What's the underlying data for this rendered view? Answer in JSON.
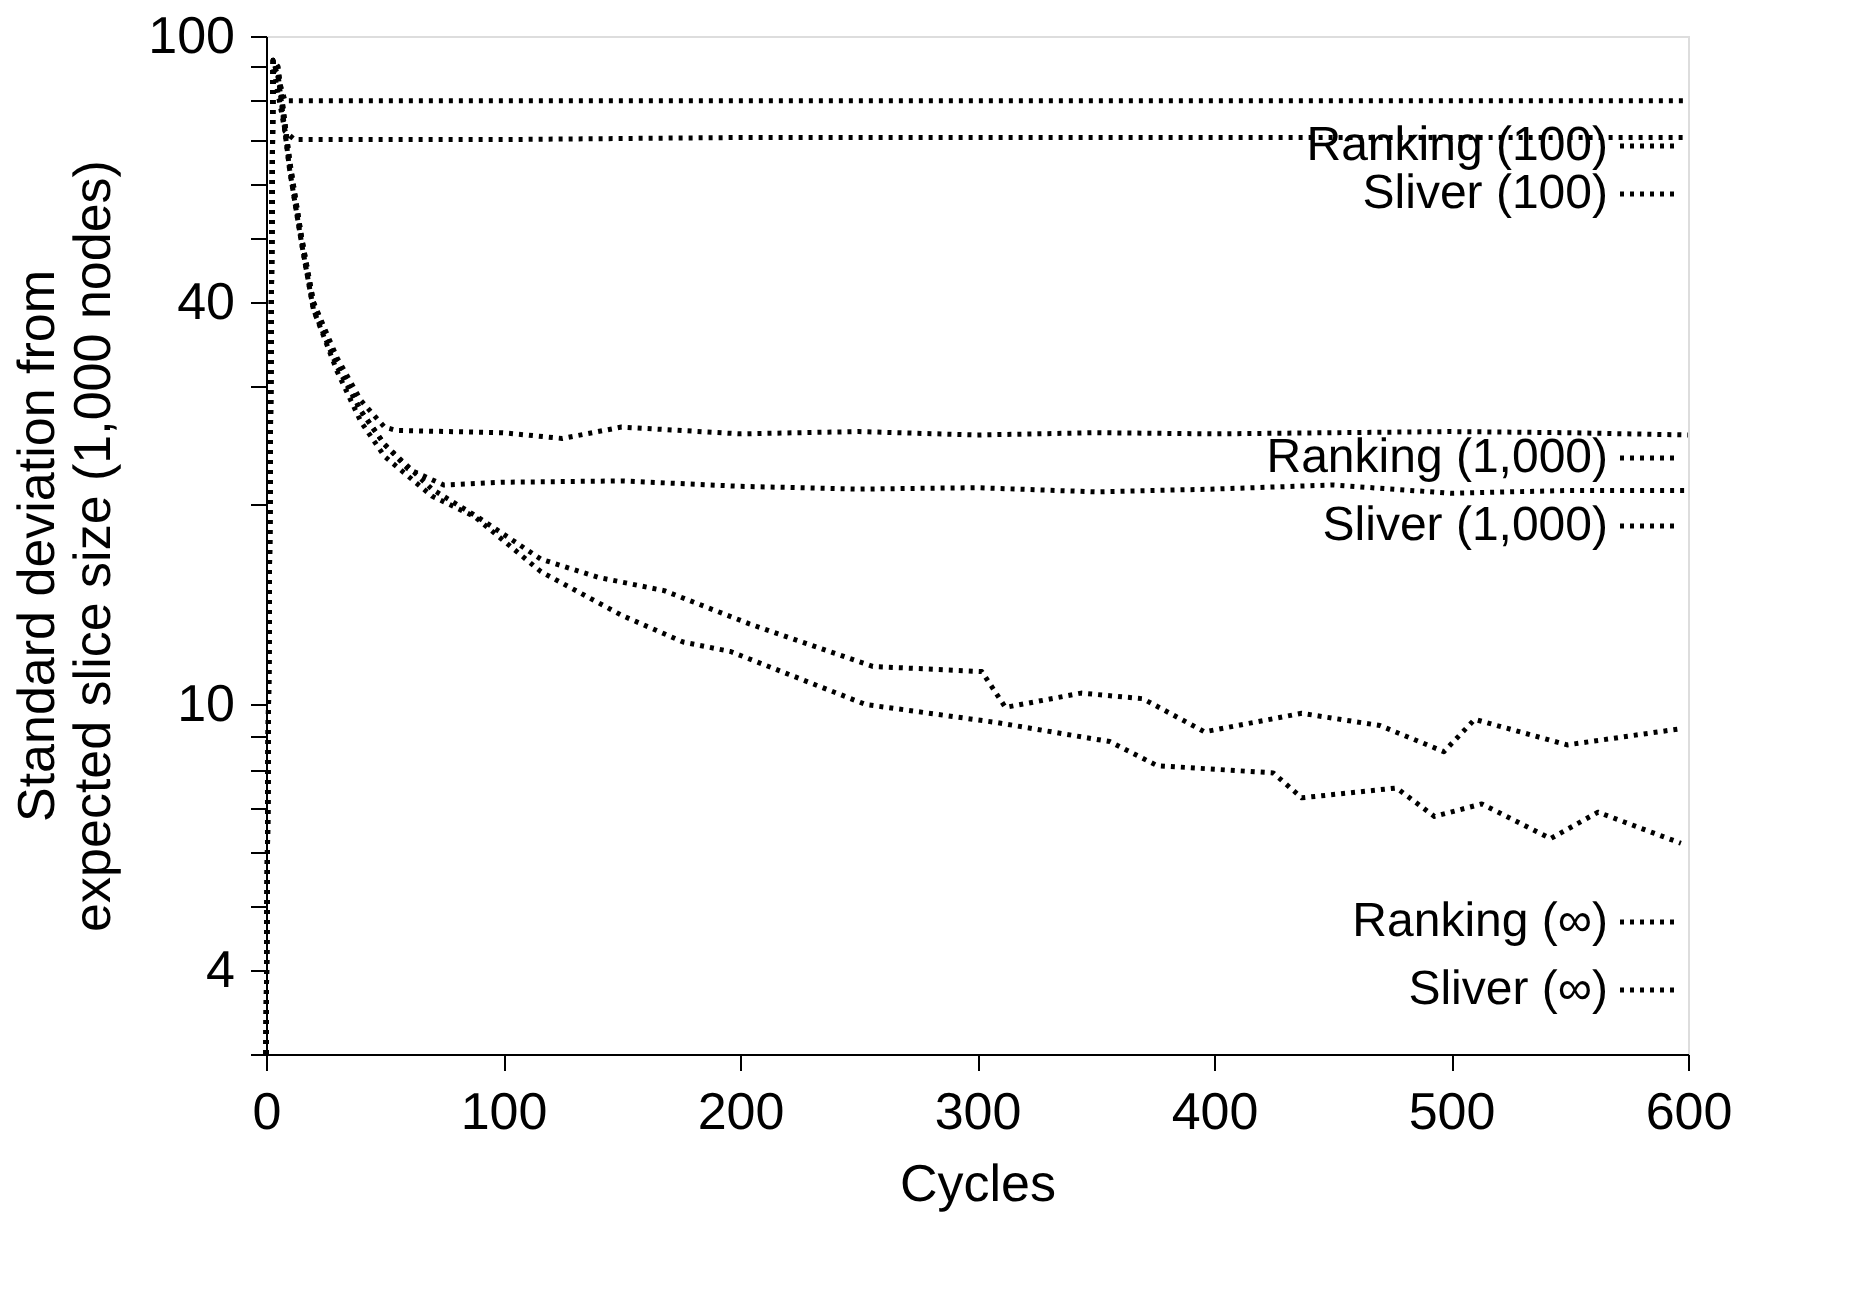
{
  "chart_data": {
    "type": "line",
    "xlabel": "Cycles",
    "ylabel": "Standard deviation from\nexpected slice size (1,000 nodes)",
    "xlim": [
      0,
      600
    ],
    "xticks": [
      0,
      100,
      200,
      300,
      400,
      500,
      600
    ],
    "ylim": [
      3,
      100
    ],
    "yticks": [
      {
        "value": 3,
        "label": null
      },
      4,
      {
        "value": 5,
        "label": null
      },
      {
        "value": 6,
        "label": null
      },
      {
        "value": 7,
        "label": null
      },
      {
        "value": 8,
        "label": null
      },
      {
        "value": 9,
        "label": null
      },
      10,
      {
        "value": 20,
        "label": null
      },
      {
        "value": 30,
        "label": null
      },
      40,
      {
        "value": 50,
        "label": null
      },
      {
        "value": 60,
        "label": null
      },
      {
        "value": 70,
        "label": null
      },
      {
        "value": 80,
        "label": null
      },
      {
        "value": 90,
        "label": null
      },
      100
    ],
    "log": "y",
    "grid": false,
    "legend": "right",
    "marker": "none",
    "line_style": "dotted",
    "series": [
      {
        "name": "Ranking (100)",
        "color": "#000000",
        "x": [
          0,
          3,
          8,
          50,
          150,
          300,
          450,
          600
        ],
        "values": [
          3,
          92,
          80,
          80,
          80,
          80,
          80,
          80
        ]
      },
      {
        "name": "Sliver (100)",
        "color": "#000000",
        "x": [
          0,
          3,
          8,
          12,
          100,
          200,
          300,
          400,
          500,
          600
        ],
        "values": [
          3,
          90,
          72,
          70,
          70,
          70.5,
          70.5,
          70.5,
          70.5,
          70.5
        ]
      },
      {
        "name": "Ranking (1,000)",
        "color": "#000000",
        "x": [
          0,
          3,
          5,
          10,
          15,
          20,
          30,
          40,
          50,
          55,
          100,
          125,
          150,
          200,
          250,
          300,
          350,
          400,
          450,
          500,
          550,
          600
        ],
        "values": [
          3,
          92,
          90,
          65,
          50,
          40,
          33,
          28.5,
          26,
          25.7,
          25.5,
          25,
          26,
          25.4,
          25.6,
          25.3,
          25.5,
          25.4,
          25.5,
          25.6,
          25.5,
          25.3
        ]
      },
      {
        "name": "Sliver (1,000)",
        "color": "#000000",
        "x": [
          0,
          3,
          5,
          10,
          15,
          20,
          30,
          40,
          50,
          60,
          75,
          100,
          150,
          200,
          250,
          300,
          350,
          400,
          450,
          500,
          550,
          600
        ],
        "values": [
          3,
          92,
          88,
          63,
          49,
          39,
          32,
          27.5,
          24.5,
          22.5,
          21.3,
          21.5,
          21.6,
          21.2,
          21,
          21.1,
          20.8,
          21,
          21.3,
          20.7,
          20.9,
          20.9
        ]
      },
      {
        "name": "Ranking (∞)",
        "color": "#000000",
        "x": [
          0,
          3,
          5,
          10,
          15,
          20,
          30,
          40,
          50,
          70,
          90,
          116,
          140,
          168,
          204,
          256,
          302,
          312,
          344,
          370,
          396,
          437,
          470,
          497,
          510,
          549,
          597
        ],
        "values": [
          3,
          92,
          90,
          65,
          50,
          40,
          32.5,
          27.5,
          24.5,
          21,
          19,
          16.5,
          15.5,
          14.8,
          13.2,
          11.4,
          11.2,
          9.9,
          10.4,
          10.2,
          9.1,
          9.7,
          9.3,
          8.5,
          9.5,
          8.7,
          9.2
        ]
      },
      {
        "name": "Sliver (∞)",
        "color": "#000000",
        "x": [
          0,
          3,
          5,
          10,
          15,
          20,
          30,
          40,
          50,
          70,
          88,
          116,
          150,
          176,
          196,
          253,
          308,
          356,
          376,
          425,
          437,
          477,
          493,
          513,
          542,
          562,
          597
        ],
        "values": [
          3,
          90,
          88,
          63,
          49,
          39,
          31.5,
          26.5,
          23.5,
          20.5,
          19.1,
          15.8,
          13.6,
          12.4,
          12,
          10,
          9.4,
          8.8,
          8.1,
          7.9,
          7.25,
          7.5,
          6.8,
          7.1,
          6.3,
          6.9,
          6.2
        ]
      }
    ]
  }
}
